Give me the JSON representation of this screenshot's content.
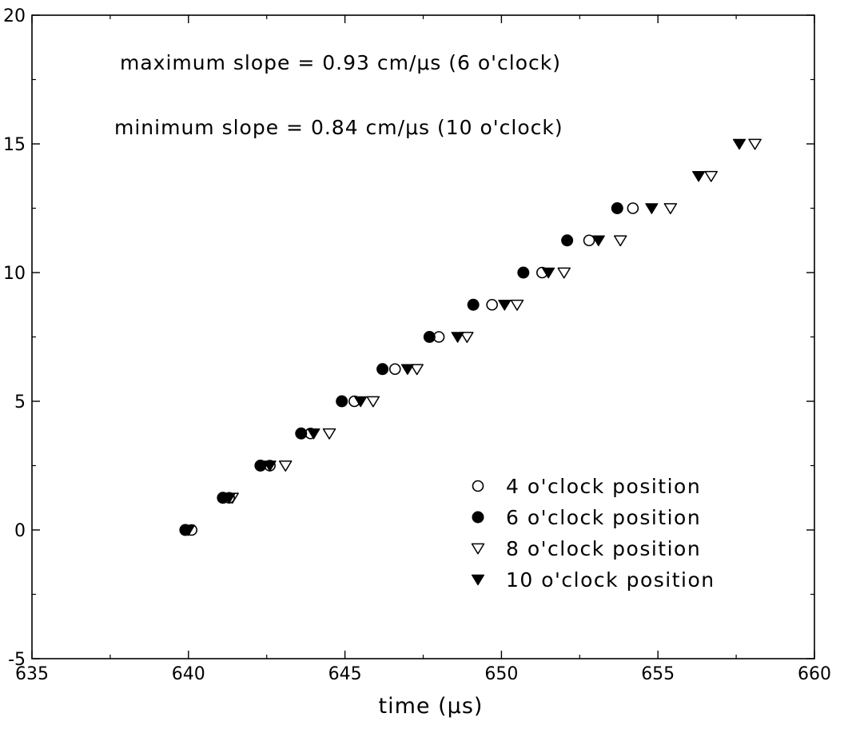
{
  "chart_data": {
    "type": "scatter",
    "title": "",
    "xlabel": "time (μs)",
    "ylabel": "",
    "xlim": [
      635,
      660
    ],
    "ylim": [
      -5,
      20
    ],
    "xticks": [
      635,
      640,
      645,
      650,
      655,
      660
    ],
    "yticks": [
      -5,
      0,
      5,
      10,
      15,
      20
    ],
    "x_tick_labels": [
      "635",
      "640",
      "645",
      "650",
      "655",
      "660"
    ],
    "y_tick_labels": [
      "-5",
      "0",
      "5",
      "10",
      "15",
      "20"
    ],
    "grid": false,
    "legend_position": "lower-right",
    "annotations": [
      "maximum slope = 0.93 cm/μs   (6 o'clock)",
      "minimum slope = 0.84 cm/μs   (10 o'clock)"
    ],
    "series": [
      {
        "name": "4 o'clock position",
        "marker": "open-circle",
        "x": [
          640.1,
          641.3,
          642.6,
          643.9,
          645.3,
          646.6,
          648.0,
          649.7,
          651.3,
          652.8,
          654.2
        ],
        "y": [
          0.0,
          1.25,
          2.5,
          3.75,
          5.0,
          6.25,
          7.5,
          8.75,
          10.0,
          11.25,
          12.5
        ]
      },
      {
        "name": "6 o'clock position",
        "marker": "filled-circle",
        "x": [
          639.9,
          641.1,
          642.3,
          643.6,
          644.9,
          646.2,
          647.7,
          649.1,
          650.7,
          652.1,
          653.7
        ],
        "y": [
          0.0,
          1.25,
          2.5,
          3.75,
          5.0,
          6.25,
          7.5,
          8.75,
          10.0,
          11.25,
          12.5
        ]
      },
      {
        "name": "8 o'clock position",
        "marker": "open-triangle-down",
        "x": [
          640.0,
          641.4,
          643.1,
          644.5,
          645.9,
          647.3,
          648.9,
          650.5,
          652.0,
          653.8,
          655.4,
          656.7,
          658.1
        ],
        "y": [
          0.0,
          1.25,
          2.5,
          3.75,
          5.0,
          6.25,
          7.5,
          8.75,
          10.0,
          11.25,
          12.5,
          13.75,
          15.0
        ]
      },
      {
        "name": "10 o'clock position",
        "marker": "filled-triangle-down",
        "x": [
          640.0,
          641.3,
          642.6,
          644.0,
          645.5,
          647.0,
          648.6,
          650.1,
          651.5,
          653.1,
          654.8,
          656.3,
          657.6
        ],
        "y": [
          0.0,
          1.25,
          2.5,
          3.75,
          5.0,
          6.25,
          7.5,
          8.75,
          10.0,
          11.25,
          12.5,
          13.75,
          15.0
        ]
      }
    ]
  }
}
